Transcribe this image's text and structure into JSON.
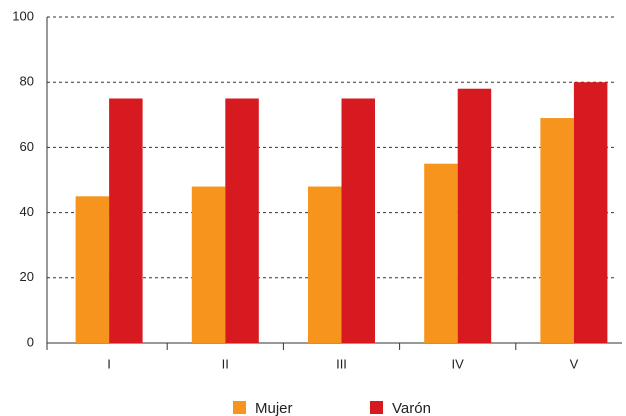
{
  "chart_data": {
    "type": "bar",
    "categories": [
      "I",
      "II",
      "III",
      "IV",
      "V"
    ],
    "series": [
      {
        "name": "Mujer",
        "color": "#f7941d",
        "values": [
          45,
          48,
          48,
          55,
          69
        ]
      },
      {
        "name": "Varón",
        "color": "#d71920",
        "values": [
          75,
          75,
          75,
          78,
          80
        ]
      }
    ],
    "ylim": [
      0,
      100
    ],
    "yticks": [
      0,
      20,
      40,
      60,
      80,
      100
    ],
    "grid": true
  }
}
